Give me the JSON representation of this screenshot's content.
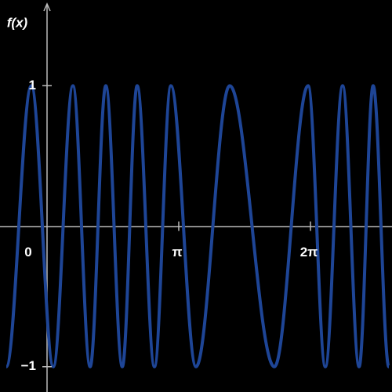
{
  "chart_data": {
    "type": "line",
    "ylabel": "f(x)",
    "x": [
      -0.972,
      -0.374,
      0.15,
      0.617,
      1.028,
      1.402,
      1.795,
      2.15,
      2.562,
      2.954,
      3.553,
      4.357,
      5.423,
      6.227,
      6.638,
      7.05,
      7.443,
      7.779,
      8.153
    ],
    "values": [
      -1,
      1,
      -1,
      1,
      -1,
      1,
      -1,
      1,
      -1,
      1,
      -1,
      1,
      -1,
      1,
      -1,
      1,
      -1,
      1,
      -1
    ],
    "color": "#1e4596",
    "xlim": [
      -1.122,
      8.228
    ],
    "ylim": [
      -1.18,
      1.61
    ],
    "xticks": [
      0,
      {
        "value": 3.14159,
        "label": "π"
      },
      {
        "value": 6.28319,
        "label": "2π"
      }
    ],
    "yticks": [
      {
        "value": -1,
        "label": "−1"
      },
      1
    ]
  }
}
